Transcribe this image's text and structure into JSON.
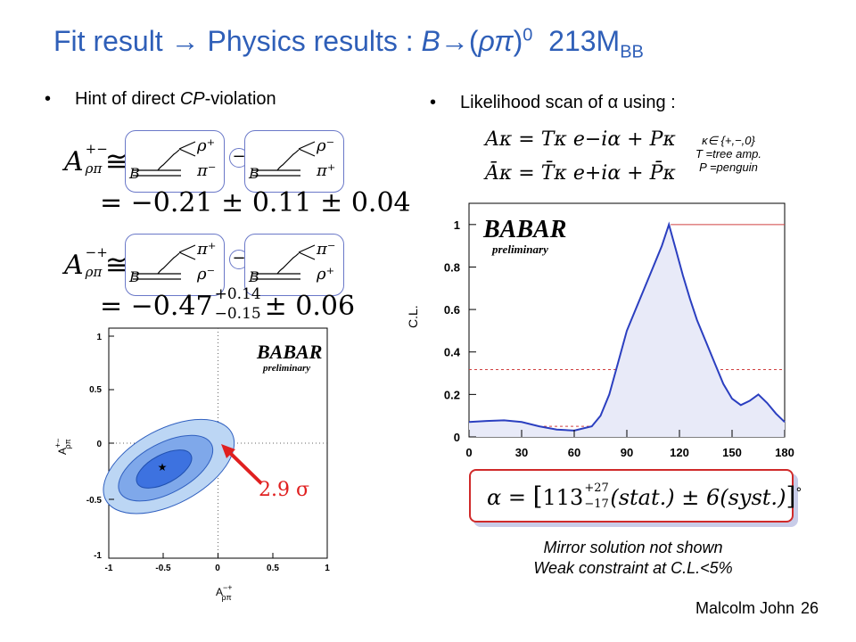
{
  "slide": {
    "title_main": "Fit result → Physics results : ",
    "title_b": "B→",
    "title_open": "(",
    "title_rhopi": "ρπ",
    "title_close": ")",
    "title_sup": "0",
    "title_lumi": "213M",
    "title_sub": "BB",
    "left_bullet_pre": "Hint of direct ",
    "left_bullet_cp": "CP",
    "left_bullet_post": "-violation",
    "right_bullet": "Likelihood scan of α using :"
  },
  "asymmetry": {
    "apm_symbol": "A",
    "apm_super": "+−",
    "apm_sub": "ρπ",
    "apm_value": "= −0.21 ± 0.11 ± 0.04",
    "amp_symbol": "A",
    "amp_super": "−+",
    "amp_sub": "ρπ",
    "amp_value_central": "= −0.47",
    "amp_err_up": "+0.14",
    "amp_err_down": "−0.15",
    "amp_value_syst": "± 0.06",
    "approx": "≅",
    "minus": "−",
    "diagrams": [
      {
        "b": "B",
        "top": "ρ⁺",
        "bot": "π⁻"
      },
      {
        "b": "B",
        "top": "ρ⁻",
        "bot": "π⁺"
      },
      {
        "b": "B",
        "top": "π⁺",
        "bot": "ρ⁻"
      },
      {
        "b": "B",
        "top": "π⁻",
        "bot": "ρ⁺"
      }
    ]
  },
  "amplitudes": {
    "line1": "A^κ = T^κ e^{−iα} + P^κ",
    "line1_text": "Aκ = Tκ e−iα + Pκ",
    "line2_text": "Āκ = T̄κ e+iα + P̄κ",
    "note_kappa": "κ∈ {+,−,0}",
    "note_t": "T =tree amp.",
    "note_p": "P =penguin"
  },
  "contour_plot": {
    "logo": "BABAR",
    "logo_sub": "preliminary",
    "ylabel": "A",
    "ylabel_sup": "+−",
    "ylabel_sub": "ρπ",
    "xlabel": "A",
    "xlabel_sup": "−+",
    "xlabel_sub": "ρπ",
    "xticks": [
      "-1",
      "-0.5",
      "0",
      "0.5",
      "1"
    ],
    "yticks": [
      "1",
      "0.5",
      "0",
      "-0.5",
      "-1"
    ],
    "center": {
      "x": -0.47,
      "y": -0.21
    },
    "sigma_label": "2.9 σ",
    "colors": {
      "inner": "#3d72e0",
      "middle": "#7fa8ea",
      "outer": "#bcd6f4",
      "arrow": "#e02020"
    }
  },
  "chart_data": {
    "type": "line",
    "title": "",
    "logo": "BABAR",
    "logo_sub": "preliminary",
    "xlabel": "",
    "ylabel": "C.L.",
    "xlim": [
      0,
      180
    ],
    "ylim": [
      0,
      1.1
    ],
    "xticks": [
      "0",
      "30",
      "60",
      "90",
      "120",
      "150",
      "180"
    ],
    "yticks": [
      "0",
      "0.2",
      "0.4",
      "0.6",
      "0.8",
      "1"
    ],
    "x": [
      0,
      10,
      20,
      30,
      40,
      50,
      60,
      70,
      75,
      80,
      85,
      90,
      95,
      100,
      105,
      110,
      114,
      118,
      122,
      126,
      130,
      135,
      140,
      145,
      150,
      155,
      160,
      165,
      170,
      175,
      180
    ],
    "y": [
      0.07,
      0.075,
      0.078,
      0.07,
      0.05,
      0.035,
      0.03,
      0.05,
      0.1,
      0.2,
      0.35,
      0.5,
      0.6,
      0.7,
      0.8,
      0.9,
      1.0,
      0.88,
      0.76,
      0.65,
      0.55,
      0.45,
      0.35,
      0.25,
      0.18,
      0.15,
      0.17,
      0.2,
      0.16,
      0.11,
      0.07
    ],
    "reference_lines": [
      1.0,
      0.317,
      0.05
    ],
    "colors": {
      "curve": "#2b3fc0",
      "fill": "#e8eaf8",
      "ref_top": "#d04040",
      "ref_dash": "#d04040"
    }
  },
  "result": {
    "formula": "α = [113 ⁺²⁷₋₁₇ (stat.) ± 6(syst.)]°",
    "alpha": "α = ",
    "value": "113",
    "err_up": "+27",
    "err_down": "−17",
    "stat": "(stat.) ± 6(syst.)",
    "deg": "°"
  },
  "captions": {
    "line1": "Mirror solution not shown",
    "line2": "Weak constraint at C.L.<5%"
  },
  "footer": {
    "author": "Malcolm John",
    "page": "26"
  }
}
